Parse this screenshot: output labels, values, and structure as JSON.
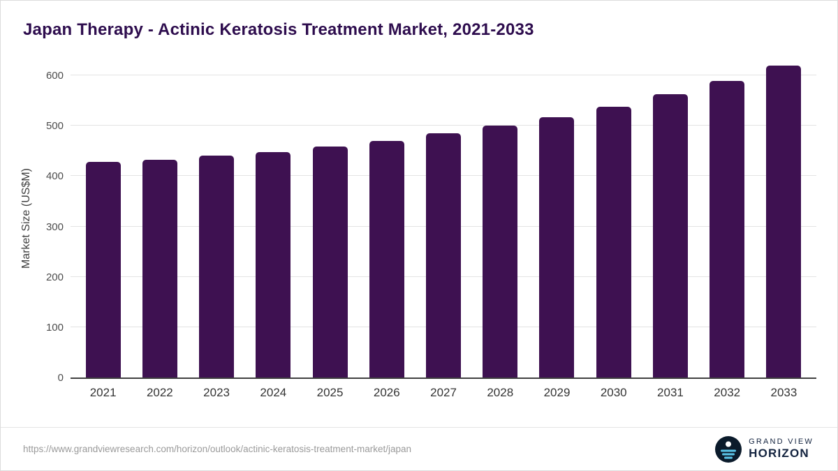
{
  "title": "Japan Therapy - Actinic Keratosis Treatment Market, 2021-2033",
  "chart_data": {
    "type": "bar",
    "categories": [
      "2021",
      "2022",
      "2023",
      "2024",
      "2025",
      "2026",
      "2027",
      "2028",
      "2029",
      "2030",
      "2031",
      "2032",
      "2033"
    ],
    "values": [
      428,
      433,
      440,
      448,
      458,
      470,
      485,
      500,
      517,
      538,
      562,
      589,
      619
    ],
    "title": "Japan Therapy - Actinic Keratosis Treatment Market, 2021-2033",
    "xlabel": "",
    "ylabel": "Market Size (US$M)",
    "ylim": [
      0,
      600
    ],
    "ytick_step": 100,
    "yticks": [
      0,
      100,
      200,
      300,
      400,
      500,
      600
    ],
    "grid": true,
    "legend": "none",
    "bar_color": "#3E1151"
  },
  "footer": {
    "source_url": "https://www.grandviewresearch.com/horizon/outlook/actinic-keratosis-treatment-market/japan",
    "brand": {
      "line1": "GRAND VIEW",
      "line2": "HORIZON"
    }
  },
  "colors": {
    "bar": "#3E1151",
    "title": "#2E0D4E",
    "brand_navy": "#13233F",
    "brand_blue": "#5BC6EA",
    "gridline": "#e3e3e3"
  }
}
